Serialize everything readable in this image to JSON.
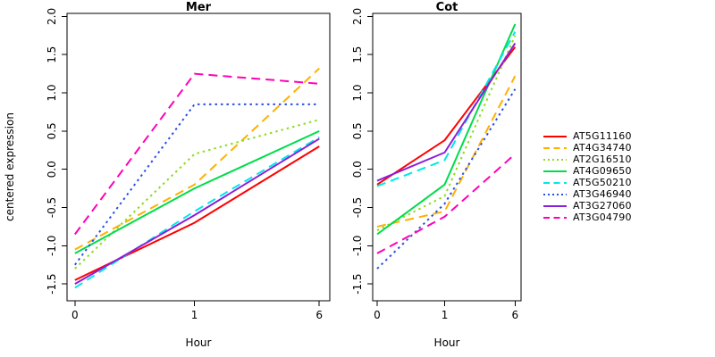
{
  "figure": {
    "ylabel": "centered expression"
  },
  "chart_data": [
    {
      "type": "line",
      "title": "Mer",
      "xlabel": "Hour",
      "ylabel": "centered expression",
      "x": [
        0,
        1,
        6
      ],
      "xticklabels": [
        "0",
        "1",
        "6"
      ],
      "yticklabels": [
        "2.0",
        "1.5",
        "1.0",
        "0.5",
        "0.0",
        "-0.5",
        "-1.0",
        "-1.5"
      ],
      "ylim": [
        -1.5,
        2.0
      ],
      "grid": "off",
      "series": [
        {
          "name": "AT5G11160",
          "color": "#FF0000",
          "dash": "solid",
          "values": [
            -1.45,
            -0.7,
            0.3
          ]
        },
        {
          "name": "AT4G34740",
          "color": "#FFB000",
          "dash": "dashed",
          "values": [
            -1.05,
            -0.2,
            1.32
          ]
        },
        {
          "name": "AT2G16510",
          "color": "#8FDB1E",
          "dash": "dotted",
          "values": [
            -1.3,
            0.2,
            0.65
          ]
        },
        {
          "name": "AT4G09650",
          "color": "#00DC4B",
          "dash": "solid",
          "values": [
            -1.1,
            -0.25,
            0.5
          ]
        },
        {
          "name": "AT5G50210",
          "color": "#00E8E8",
          "dash": "dashed",
          "values": [
            -1.55,
            -0.55,
            0.42
          ]
        },
        {
          "name": "AT3G46940",
          "color": "#2B50E0",
          "dash": "dotted",
          "values": [
            -1.25,
            0.85,
            0.85
          ]
        },
        {
          "name": "AT3G27060",
          "color": "#8C1FD9",
          "dash": "solid",
          "values": [
            -1.5,
            -0.6,
            0.4
          ]
        },
        {
          "name": "AT3G04790",
          "color": "#FF00B8",
          "dash": "dashed",
          "values": [
            -0.85,
            1.25,
            1.12
          ]
        }
      ]
    },
    {
      "type": "line",
      "title": "Cot",
      "xlabel": "Hour",
      "ylabel": "centered expression",
      "x": [
        0,
        1,
        6
      ],
      "xticklabels": [
        "0",
        "1",
        "6"
      ],
      "yticklabels": [
        "2.0",
        "1.5",
        "1.0",
        "0.5",
        "0.0",
        "-0.5",
        "-1.0",
        "-1.5"
      ],
      "ylim": [
        -1.5,
        2.0
      ],
      "grid": "off",
      "series": [
        {
          "name": "AT5G11160",
          "color": "#FF0000",
          "dash": "solid",
          "values": [
            -0.2,
            0.38,
            1.6
          ]
        },
        {
          "name": "AT4G34740",
          "color": "#FFB000",
          "dash": "dashed",
          "values": [
            -0.75,
            -0.55,
            1.22
          ]
        },
        {
          "name": "AT2G16510",
          "color": "#8FDB1E",
          "dash": "dotted",
          "values": [
            -0.8,
            -0.35,
            1.75
          ]
        },
        {
          "name": "AT4G09650",
          "color": "#00DC4B",
          "dash": "solid",
          "values": [
            -0.85,
            -0.2,
            1.9
          ]
        },
        {
          "name": "AT5G50210",
          "color": "#00E8E8",
          "dash": "dashed",
          "values": [
            -0.22,
            0.12,
            1.8
          ]
        },
        {
          "name": "AT3G46940",
          "color": "#2B50E0",
          "dash": "dotted",
          "values": [
            -1.3,
            -0.45,
            1.05
          ]
        },
        {
          "name": "AT3G27060",
          "color": "#8C1FD9",
          "dash": "solid",
          "values": [
            -0.15,
            0.22,
            1.65
          ]
        },
        {
          "name": "AT3G04790",
          "color": "#FF00B8",
          "dash": "dashed",
          "values": [
            -1.1,
            -0.62,
            0.2
          ]
        }
      ]
    }
  ],
  "legend": {
    "position": "right",
    "labels": [
      "AT5G11160",
      "AT4G34740",
      "AT2G16510",
      "AT4G09650",
      "AT5G50210",
      "AT3G46940",
      "AT3G27060",
      "AT3G04790"
    ]
  }
}
